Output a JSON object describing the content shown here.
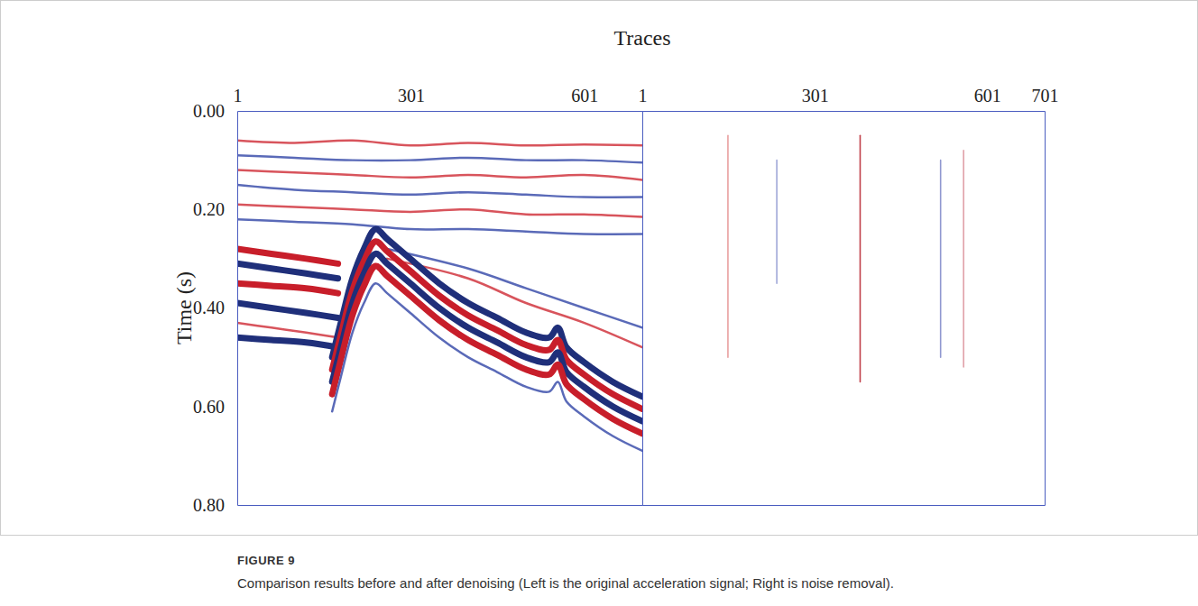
{
  "figure": {
    "xlabel": "Traces",
    "label": "FIGURE 9",
    "caption": "Comparison results before and after denoising (Left is the original acceleration signal; Right is noise removal)."
  },
  "chart_data": [
    {
      "type": "line",
      "ylabel": "Time (s)",
      "xlim": [
        1,
        701
      ],
      "xticks": [
        1,
        301,
        601
      ],
      "ylim": [
        0,
        0.8
      ],
      "yticks": [
        {
          "value": 0,
          "label": "0.00"
        },
        {
          "value": 0.2,
          "label": "0.20"
        },
        {
          "value": 0.4,
          "label": "0.40"
        },
        {
          "value": 0.6,
          "label": "0.60"
        },
        {
          "value": 0.8,
          "label": "0.80"
        }
      ],
      "series": [
        {
          "color": "#d8545c",
          "line_style": "solid",
          "x": [
            1,
            100,
            200,
            300,
            400,
            500,
            600,
            701
          ],
          "values": [
            0.06,
            0.065,
            0.06,
            0.07,
            0.065,
            0.07,
            0.068,
            0.07
          ]
        },
        {
          "color": "#5a6ab8",
          "line_style": "solid",
          "x": [
            1,
            100,
            200,
            300,
            400,
            500,
            600,
            701
          ],
          "values": [
            0.09,
            0.095,
            0.1,
            0.1,
            0.095,
            0.1,
            0.1,
            0.105
          ]
        },
        {
          "color": "#d8545c",
          "line_style": "solid",
          "x": [
            1,
            100,
            200,
            300,
            400,
            500,
            600,
            701
          ],
          "values": [
            0.12,
            0.125,
            0.13,
            0.135,
            0.13,
            0.135,
            0.13,
            0.14
          ]
        },
        {
          "color": "#5a6ab8",
          "line_style": "solid",
          "x": [
            1,
            100,
            200,
            300,
            400,
            500,
            600,
            701
          ],
          "values": [
            0.15,
            0.16,
            0.165,
            0.17,
            0.165,
            0.17,
            0.175,
            0.175
          ]
        },
        {
          "color": "#d8545c",
          "line_style": "solid",
          "x": [
            1,
            100,
            200,
            300,
            400,
            500,
            600,
            701
          ],
          "values": [
            0.19,
            0.195,
            0.2,
            0.205,
            0.2,
            0.21,
            0.21,
            0.215
          ]
        },
        {
          "color": "#5a6ab8",
          "line_style": "solid",
          "x": [
            1,
            100,
            200,
            300,
            400,
            500,
            600,
            701
          ],
          "values": [
            0.22,
            0.225,
            0.23,
            0.24,
            0.24,
            0.245,
            0.25,
            0.25
          ]
        },
        {
          "color": "#5a6ab8",
          "line_style": "solid",
          "x": [
            260,
            400,
            500,
            600,
            701
          ],
          "values": [
            0.28,
            0.32,
            0.36,
            0.4,
            0.44
          ]
        },
        {
          "color": "#d8545c",
          "line_style": "solid",
          "x": [
            260,
            400,
            500,
            600,
            701
          ],
          "values": [
            0.3,
            0.34,
            0.39,
            0.43,
            0.48
          ]
        },
        {
          "color": "#c81e2a",
          "line_style": "bold",
          "x": [
            1,
            60,
            120,
            175
          ],
          "values": [
            0.28,
            0.29,
            0.3,
            0.31
          ]
        },
        {
          "color": "#1f2f7a",
          "line_style": "bold",
          "x": [
            1,
            60,
            120,
            175
          ],
          "values": [
            0.31,
            0.32,
            0.33,
            0.34
          ]
        },
        {
          "color": "#c81e2a",
          "line_style": "bold",
          "x": [
            1,
            60,
            120,
            175
          ],
          "values": [
            0.35,
            0.355,
            0.36,
            0.37
          ]
        },
        {
          "color": "#1f2f7a",
          "line_style": "bold",
          "x": [
            1,
            60,
            120,
            175
          ],
          "values": [
            0.39,
            0.4,
            0.41,
            0.42
          ]
        },
        {
          "color": "#d8545c",
          "line_style": "solid",
          "x": [
            1,
            60,
            120,
            175
          ],
          "values": [
            0.43,
            0.44,
            0.45,
            0.46
          ]
        },
        {
          "color": "#1f2f7a",
          "line_style": "bold",
          "x": [
            1,
            60,
            120,
            175
          ],
          "values": [
            0.46,
            0.465,
            0.47,
            0.48
          ]
        },
        {
          "color": "#1f2f7a",
          "line_style": "bold",
          "x": [
            165,
            180,
            200,
            220,
            240,
            260,
            300,
            350,
            400,
            450,
            500,
            540,
            555,
            570,
            600,
            650,
            701
          ],
          "values": [
            0.5,
            0.43,
            0.34,
            0.28,
            0.24,
            0.26,
            0.3,
            0.35,
            0.39,
            0.42,
            0.45,
            0.46,
            0.44,
            0.48,
            0.51,
            0.55,
            0.58
          ]
        },
        {
          "color": "#c81e2a",
          "line_style": "bold",
          "x": [
            165,
            180,
            200,
            220,
            240,
            260,
            300,
            350,
            400,
            450,
            500,
            540,
            555,
            570,
            600,
            650,
            701
          ],
          "values": [
            0.525,
            0.455,
            0.365,
            0.305,
            0.265,
            0.285,
            0.325,
            0.375,
            0.415,
            0.445,
            0.475,
            0.485,
            0.465,
            0.505,
            0.535,
            0.575,
            0.605
          ]
        },
        {
          "color": "#1f2f7a",
          "line_style": "bold",
          "x": [
            165,
            180,
            200,
            220,
            240,
            260,
            300,
            350,
            400,
            450,
            500,
            540,
            555,
            570,
            600,
            650,
            701
          ],
          "values": [
            0.55,
            0.48,
            0.39,
            0.33,
            0.29,
            0.31,
            0.35,
            0.4,
            0.44,
            0.47,
            0.5,
            0.51,
            0.49,
            0.53,
            0.56,
            0.6,
            0.63
          ]
        },
        {
          "color": "#c81e2a",
          "line_style": "bold",
          "x": [
            165,
            180,
            200,
            220,
            240,
            260,
            300,
            350,
            400,
            450,
            500,
            540,
            555,
            570,
            600,
            650,
            701
          ],
          "values": [
            0.575,
            0.505,
            0.415,
            0.355,
            0.315,
            0.335,
            0.375,
            0.425,
            0.465,
            0.495,
            0.525,
            0.535,
            0.515,
            0.555,
            0.585,
            0.625,
            0.655
          ]
        },
        {
          "color": "#5a6ab8",
          "line_style": "solid",
          "x": [
            165,
            180,
            200,
            220,
            240,
            260,
            300,
            350,
            400,
            450,
            500,
            540,
            555,
            570,
            600,
            650,
            701
          ],
          "values": [
            0.61,
            0.54,
            0.45,
            0.39,
            0.35,
            0.37,
            0.41,
            0.46,
            0.5,
            0.53,
            0.56,
            0.57,
            0.55,
            0.59,
            0.62,
            0.66,
            0.69
          ]
        }
      ]
    },
    {
      "type": "line",
      "tick_labels": "x",
      "xlim": [
        1,
        701
      ],
      "xticks": [
        1,
        301,
        601,
        701
      ],
      "ylim": [
        0,
        0.8
      ],
      "series": [
        {
          "color": "#e8a0a0",
          "line_style": "thin",
          "x": [
            150,
            150
          ],
          "values": [
            0.05,
            0.5
          ]
        },
        {
          "color": "#a0a8d8",
          "line_style": "thin",
          "x": [
            235,
            235
          ],
          "values": [
            0.1,
            0.35
          ]
        },
        {
          "color": "#c0404a",
          "line_style": "thin",
          "x": [
            380,
            380
          ],
          "values": [
            0.05,
            0.55
          ]
        },
        {
          "color": "#9098d0",
          "line_style": "thin",
          "x": [
            520,
            520
          ],
          "values": [
            0.1,
            0.5
          ]
        },
        {
          "color": "#e0a0a8",
          "line_style": "thin",
          "x": [
            560,
            560
          ],
          "values": [
            0.08,
            0.52
          ]
        }
      ]
    }
  ]
}
